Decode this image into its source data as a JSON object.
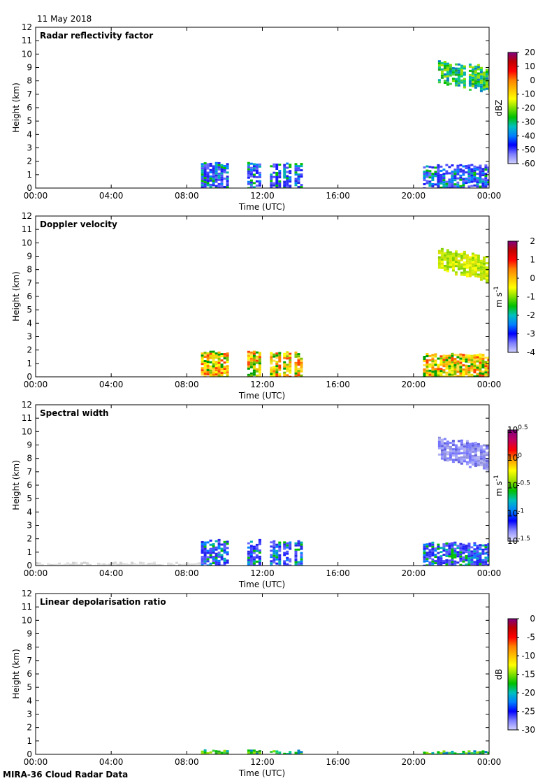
{
  "header": {
    "date": "11 May 2018"
  },
  "footer": {
    "source": "MIRA-36 Cloud Radar Data"
  },
  "chart_data": [
    {
      "type": "heatmap",
      "title": "Radar reflectivity factor",
      "xlabel": "Time (UTC)",
      "ylabel": "Height (km)",
      "x_ticks": [
        "00:00",
        "04:00",
        "08:00",
        "12:00",
        "16:00",
        "20:00",
        "00:00"
      ],
      "y_ticks": [
        "0",
        "1",
        "2",
        "3",
        "4",
        "5",
        "6",
        "7",
        "8",
        "9",
        "10",
        "11",
        "12"
      ],
      "xlim_hours": [
        0,
        24
      ],
      "ylim_km": [
        0,
        12
      ],
      "colorbar": {
        "unit": "dBZ",
        "ticks": [
          "20",
          "10",
          "0",
          "-10",
          "-20",
          "-30",
          "-40",
          "-50",
          "-60"
        ],
        "range": [
          -60,
          20
        ]
      },
      "echoes": [
        {
          "t0": 8.75,
          "t1": 10.2,
          "h0": 0,
          "h1": 2.0,
          "dominant": "blue"
        },
        {
          "t0": 11.2,
          "t1": 11.9,
          "h0": 0,
          "h1": 2.0,
          "dominant": "blue"
        },
        {
          "t0": 12.4,
          "t1": 12.9,
          "h0": 0,
          "h1": 1.9,
          "dominant": "blue"
        },
        {
          "t0": 13.1,
          "t1": 13.45,
          "h0": 0,
          "h1": 2.0,
          "dominant": "blue"
        },
        {
          "t0": 13.7,
          "t1": 14.05,
          "h0": 0,
          "h1": 1.9,
          "dominant": "blue"
        },
        {
          "t0": 20.5,
          "t1": 24,
          "h0": 0,
          "h1": 1.8,
          "dominant": "blue"
        },
        {
          "t0": 21.0,
          "t1": 24,
          "h0": 7.2,
          "h1": 10.0,
          "dominant": "green"
        }
      ]
    },
    {
      "type": "heatmap",
      "title": "Doppler velocity",
      "xlabel": "Time (UTC)",
      "ylabel": "Height (km)",
      "x_ticks": [
        "00:00",
        "04:00",
        "08:00",
        "12:00",
        "16:00",
        "20:00",
        "00:00"
      ],
      "y_ticks": [
        "0",
        "1",
        "2",
        "3",
        "4",
        "5",
        "6",
        "7",
        "8",
        "9",
        "10",
        "11",
        "12"
      ],
      "xlim_hours": [
        0,
        24
      ],
      "ylim_km": [
        0,
        12
      ],
      "colorbar": {
        "unit": "m s",
        "unit_exp": "-1",
        "ticks": [
          "2",
          "1",
          "0",
          "-1",
          "-2",
          "-3",
          "-4"
        ],
        "range": [
          -4,
          2
        ]
      },
      "echoes": [
        {
          "t0": 8.75,
          "t1": 10.2,
          "h0": 0,
          "h1": 2.0,
          "dominant": "yellow"
        },
        {
          "t0": 11.2,
          "t1": 11.9,
          "h0": 0,
          "h1": 2.0,
          "dominant": "yellow"
        },
        {
          "t0": 12.4,
          "t1": 12.9,
          "h0": 0,
          "h1": 1.9,
          "dominant": "yellow"
        },
        {
          "t0": 13.1,
          "t1": 13.45,
          "h0": 0,
          "h1": 2.0,
          "dominant": "yellow"
        },
        {
          "t0": 13.7,
          "t1": 14.05,
          "h0": 0,
          "h1": 1.9,
          "dominant": "yellow"
        },
        {
          "t0": 20.5,
          "t1": 24,
          "h0": 0,
          "h1": 1.8,
          "dominant": "yellow"
        },
        {
          "t0": 21.0,
          "t1": 24,
          "h0": 7.2,
          "h1": 10.0,
          "dominant": "yellow-green"
        }
      ]
    },
    {
      "type": "heatmap",
      "title": "Spectral width",
      "xlabel": "Time (UTC)",
      "ylabel": "Height (km)",
      "x_ticks": [
        "00:00",
        "04:00",
        "08:00",
        "12:00",
        "16:00",
        "20:00",
        "00:00"
      ],
      "y_ticks": [
        "0",
        "1",
        "2",
        "3",
        "4",
        "5",
        "6",
        "7",
        "8",
        "9",
        "10",
        "11",
        "12"
      ],
      "xlim_hours": [
        0,
        24
      ],
      "ylim_km": [
        0,
        12
      ],
      "colorbar": {
        "unit": "m s",
        "unit_exp": "-1",
        "scale": "log",
        "base": "10",
        "exponents": [
          "0.5",
          "0",
          "-0.5",
          "-1",
          "-1.5"
        ]
      },
      "echoes": [
        {
          "t0": 0,
          "t1": 8.75,
          "h0": 0,
          "h1": 0.3,
          "dominant": "light-grey"
        },
        {
          "t0": 8.75,
          "t1": 10.2,
          "h0": 0,
          "h1": 2.0,
          "dominant": "blue"
        },
        {
          "t0": 11.2,
          "t1": 11.9,
          "h0": 0,
          "h1": 2.0,
          "dominant": "blue"
        },
        {
          "t0": 12.4,
          "t1": 12.9,
          "h0": 0,
          "h1": 1.9,
          "dominant": "blue"
        },
        {
          "t0": 13.1,
          "t1": 13.45,
          "h0": 0,
          "h1": 2.0,
          "dominant": "blue"
        },
        {
          "t0": 13.7,
          "t1": 14.05,
          "h0": 0,
          "h1": 1.9,
          "dominant": "blue"
        },
        {
          "t0": 20.5,
          "t1": 24,
          "h0": 0,
          "h1": 1.8,
          "dominant": "blue"
        },
        {
          "t0": 21.0,
          "t1": 24,
          "h0": 7.2,
          "h1": 10.0,
          "dominant": "lavender"
        }
      ]
    },
    {
      "type": "heatmap",
      "title": "Linear depolarisation ratio",
      "xlabel": "Time (UTC)",
      "ylabel": "Height (km)",
      "x_ticks": [
        "00:00",
        "04:00",
        "08:00",
        "12:00",
        "16:00",
        "20:00",
        "00:00"
      ],
      "y_ticks": [
        "0",
        "1",
        "2",
        "3",
        "4",
        "5",
        "6",
        "7",
        "8",
        "9",
        "10",
        "11",
        "12"
      ],
      "xlim_hours": [
        0,
        24
      ],
      "ylim_km": [
        0,
        12
      ],
      "colorbar": {
        "unit": "dB",
        "ticks": [
          "0",
          "-5",
          "-10",
          "-15",
          "-20",
          "-25",
          "-30"
        ],
        "range": [
          -30,
          0
        ]
      },
      "echoes": [
        {
          "t0": 8.75,
          "t1": 10.2,
          "h0": 0,
          "h1": 0.4,
          "dominant": "green"
        },
        {
          "t0": 11.2,
          "t1": 11.9,
          "h0": 0,
          "h1": 0.4,
          "dominant": "green"
        },
        {
          "t0": 12.4,
          "t1": 12.9,
          "h0": 0,
          "h1": 0.4,
          "dominant": "green"
        },
        {
          "t0": 13.1,
          "t1": 13.45,
          "h0": 0,
          "h1": 0.4,
          "dominant": "green"
        },
        {
          "t0": 13.7,
          "t1": 14.05,
          "h0": 0,
          "h1": 0.4,
          "dominant": "green"
        },
        {
          "t0": 20.5,
          "t1": 24,
          "h0": 0,
          "h1": 0.3,
          "dominant": "green"
        }
      ]
    }
  ]
}
